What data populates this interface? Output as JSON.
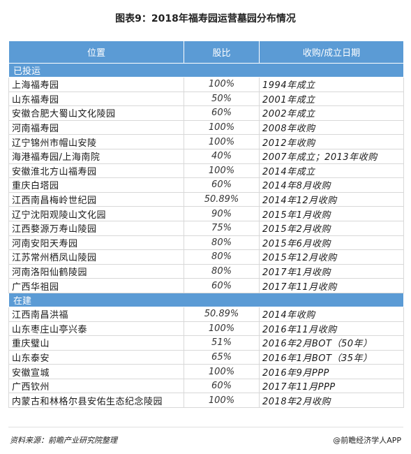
{
  "title": "图表9：2018年福寿园运营墓园分布情况",
  "table": {
    "headers": [
      "位置",
      "股比",
      "收购/成立日期"
    ],
    "sections": [
      {
        "label": "已投运",
        "rows": [
          {
            "location": "上海福寿园",
            "share": "100%",
            "date": "1994年成立"
          },
          {
            "location": "山东福寿园",
            "share": "50%",
            "date": "2001年成立"
          },
          {
            "location": "安徽合肥大蜀山文化陵园",
            "share": "60%",
            "date": "2002年成立"
          },
          {
            "location": "河南福寿园",
            "share": "100%",
            "date": "2008年收购"
          },
          {
            "location": "辽宁锦州市帽山安陵",
            "share": "100%",
            "date": "2012年收购"
          },
          {
            "location": "海港福寿园/上海南院",
            "share": "40%",
            "date": "2007年成立；2013年收购"
          },
          {
            "location": "安徽淮北方山福寿园",
            "share": "100%",
            "date": "2014年成立"
          },
          {
            "location": "重庆白塔园",
            "share": "60%",
            "date": "2014年8月收购"
          },
          {
            "location": "江西南昌梅岭世纪园",
            "share": "50.89%",
            "date": "2014年12月收购"
          },
          {
            "location": "辽宁沈阳观陵山文化园",
            "share": "90%",
            "date": "2015年1月收购"
          },
          {
            "location": "江西婺源万寿山陵园",
            "share": "75%",
            "date": "2015年2月收购"
          },
          {
            "location": "河南安阳天寿园",
            "share": "80%",
            "date": "2015年6月收购"
          },
          {
            "location": "江苏常州栖凤山陵园",
            "share": "80%",
            "date": "2015年12月收购"
          },
          {
            "location": "河南洛阳仙鹤陵园",
            "share": "80%",
            "date": "2017年1月收购"
          },
          {
            "location": "广西华祖园",
            "share": "60%",
            "date": "2017年11月收购"
          }
        ]
      },
      {
        "label": "在建",
        "rows": [
          {
            "location": "江西南昌洪福",
            "share": "50.89%",
            "date": "2014年收购"
          },
          {
            "location": "山东枣庄山亭兴泰",
            "share": "100%",
            "date": "2016年11月收购"
          },
          {
            "location": "重庆璧山",
            "share": "51%",
            "date": "2016年2月BOT（50年）"
          },
          {
            "location": "山东泰安",
            "share": "65%",
            "date": "2016年1月BOT（35年）"
          },
          {
            "location": "安徽宣城",
            "share": "100%",
            "date": "2016年9月PPP"
          },
          {
            "location": "广西钦州",
            "share": "60%",
            "date": "2017年11月PPP"
          },
          {
            "location": "内蒙古和林格尔县安佑生态纪念陵园",
            "share": "100%",
            "date": "2018年2月收购"
          }
        ]
      }
    ]
  },
  "footer": {
    "source": "资料来源：前瞻产业研究院整理",
    "brand": "@前瞻经济学人APP"
  }
}
